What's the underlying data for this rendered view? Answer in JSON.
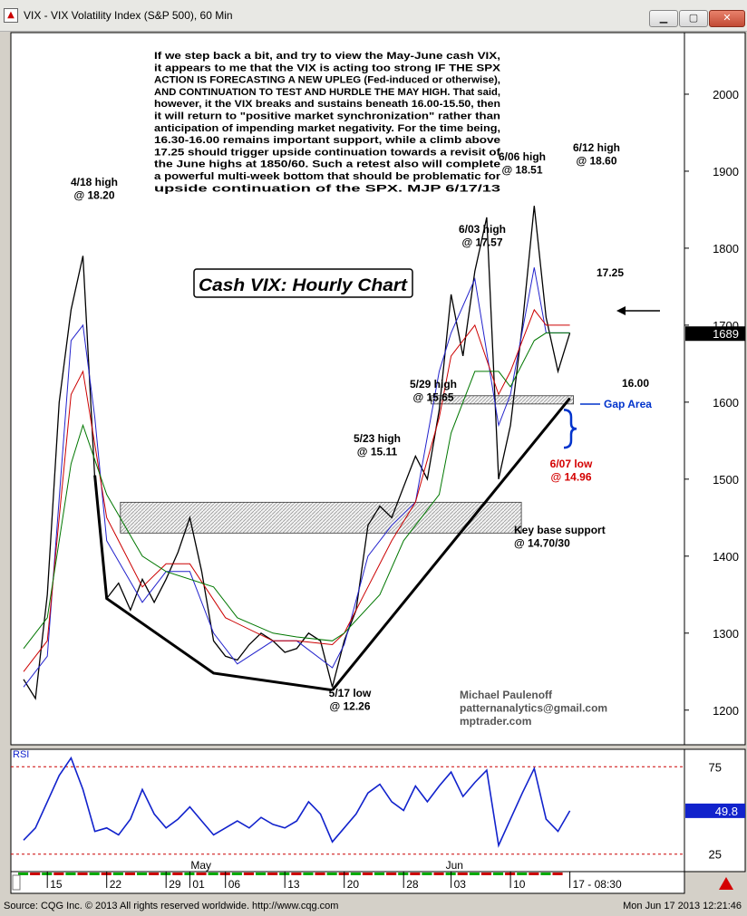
{
  "window": {
    "title": "VIX - VIX Volatility Index (S&P 500), 60 Min",
    "buttons": [
      "minimize",
      "maximize",
      "close"
    ]
  },
  "footer": {
    "source": "Source: CQG Inc. © 2013 All rights reserved worldwide. http://www.cqg.com",
    "timestamp": "Mon Jun 17 2013 12:21:46"
  },
  "chart_data": [
    {
      "type": "line",
      "title": "Cash VIX: Hourly Chart",
      "instrument": "VIX",
      "timeframe": "60 Min",
      "y_axis": {
        "position": "right",
        "ylim": [
          1155,
          2080
        ],
        "ticks": [
          1200,
          1300,
          1400,
          1500,
          1600,
          1700,
          1800,
          1900,
          2000
        ],
        "last_value": "1689"
      },
      "x_axis": {
        "date_ticks": [
          "15",
          "22",
          "29",
          "01",
          "06",
          "13",
          "20",
          "28",
          "03",
          "10",
          "17 - 08:30"
        ],
        "month_labels": [
          "May",
          "Jun"
        ]
      },
      "commentary": [
        "If we step back a bit, and try to view the May-June cash VIX,",
        "it appears to me that the VIX is acting too strong IF THE SPX",
        "ACTION IS FORECASTING A NEW UPLEG (Fed-induced or otherwise),",
        "AND CONTINUATION TO TEST AND HURDLE THE MAY HIGH. That said,",
        "however, it the VIX breaks and sustains beneath 16.00-15.50, then",
        "it will return to \"positive market synchronization\" rather than",
        "anticipation of impending market negativity.  For the time being,",
        "16.30-16.00 remains important support, while a climb above",
        "17.25 should trigger upside continuation towards a revisit of",
        "the June highs at 1850/60. Such a retest also will complete",
        "a powerful multi-week bottom that should be problematic for",
        "upside continuation of the SPX.  MJP  6/17/13"
      ],
      "annotations": [
        {
          "text": [
            "4/18 high",
            "@ 18.20"
          ],
          "color": "#000000"
        },
        {
          "text": [
            "5/17 low",
            "@ 12.26"
          ],
          "color": "#000000"
        },
        {
          "text": [
            "5/23 high",
            "@ 15.11"
          ],
          "color": "#000000"
        },
        {
          "text": [
            "5/29 high",
            "@ 15.65"
          ],
          "color": "#000000"
        },
        {
          "text": [
            "6/03 high",
            "@ 17.57"
          ],
          "color": "#000000"
        },
        {
          "text": [
            "6/06 high",
            "@ 18.51"
          ],
          "color": "#000000"
        },
        {
          "text": [
            "6/12 high",
            "@ 18.60"
          ],
          "color": "#000000"
        },
        {
          "text": [
            "17.25"
          ],
          "color": "#000000"
        },
        {
          "text": [
            "16.00"
          ],
          "color": "#000000"
        },
        {
          "text": [
            "Gap Area"
          ],
          "color": "#0033cc"
        },
        {
          "text": [
            "6/07 low",
            "@ 14.96"
          ],
          "color": "#d40000"
        },
        {
          "text": [
            "Key base support",
            "@ 14.70/30"
          ],
          "color": "#000000"
        }
      ],
      "signature": [
        "Michael Paulenoff",
        "patternanalytics@gmail.com",
        "mptrader.com"
      ],
      "zones": [
        {
          "type": "hatched-band",
          "from": 1430,
          "to": 1470
        },
        {
          "type": "support-band",
          "from": 1600,
          "to": 1606
        }
      ],
      "trendlines": [
        {
          "type": "base",
          "points": [
            [
              "4/19",
              1505
            ],
            [
              "4/22",
              1345
            ],
            [
              "5/03",
              1248
            ],
            [
              "5/17",
              1226
            ]
          ]
        },
        {
          "type": "rising-support",
          "points": [
            [
              "5/17",
              1226
            ],
            [
              "6/17",
              1605
            ]
          ]
        }
      ],
      "series": [
        {
          "name": "VIX",
          "color": "#000000",
          "x": [
            "4/11",
            "4/12",
            "4/15",
            "4/16",
            "4/17",
            "4/18",
            "4/19",
            "4/22",
            "4/23",
            "4/24",
            "4/25",
            "4/26",
            "4/29",
            "4/30",
            "5/01",
            "5/02",
            "5/03",
            "5/06",
            "5/07",
            "5/08",
            "5/09",
            "5/10",
            "5/13",
            "5/14",
            "5/15",
            "5/16",
            "5/17",
            "5/20",
            "5/21",
            "5/22",
            "5/23",
            "5/24",
            "5/28",
            "5/29",
            "5/30",
            "5/31",
            "6/03",
            "6/04",
            "6/05",
            "6/06",
            "6/07",
            "6/10",
            "6/11",
            "6/12",
            "6/13",
            "6/14",
            "6/17"
          ],
          "values": [
            1240,
            1215,
            1350,
            1600,
            1720,
            1790,
            1500,
            1345,
            1365,
            1330,
            1370,
            1340,
            1370,
            1405,
            1450,
            1380,
            1290,
            1270,
            1265,
            1285,
            1300,
            1290,
            1275,
            1280,
            1300,
            1290,
            1230,
            1290,
            1330,
            1440,
            1465,
            1450,
            1490,
            1530,
            1500,
            1590,
            1740,
            1660,
            1770,
            1840,
            1500,
            1570,
            1700,
            1855,
            1710,
            1640,
            1690
          ]
        },
        {
          "name": "blue MA",
          "color": "#2222cc",
          "x": [
            "4/11",
            "4/15",
            "4/17",
            "4/18",
            "4/19",
            "4/22",
            "4/25",
            "4/29",
            "5/01",
            "5/03",
            "5/07",
            "5/10",
            "5/14",
            "5/17",
            "5/20",
            "5/22",
            "5/24",
            "5/29",
            "5/31",
            "6/03",
            "6/05",
            "6/07",
            "6/10",
            "6/12",
            "6/13",
            "6/17"
          ],
          "values": [
            1230,
            1270,
            1680,
            1700,
            1580,
            1420,
            1340,
            1380,
            1380,
            1300,
            1260,
            1290,
            1290,
            1255,
            1285,
            1400,
            1440,
            1470,
            1640,
            1690,
            1760,
            1570,
            1610,
            1775,
            1690,
            1690
          ]
        },
        {
          "name": "red MA",
          "color": "#cc0000",
          "x": [
            "4/11",
            "4/15",
            "4/17",
            "4/18",
            "4/22",
            "4/25",
            "4/29",
            "5/01",
            "5/06",
            "5/10",
            "5/14",
            "5/17",
            "5/20",
            "5/22",
            "5/24",
            "5/29",
            "5/31",
            "6/03",
            "6/05",
            "6/07",
            "6/10",
            "6/12",
            "6/13",
            "6/17"
          ],
          "values": [
            1250,
            1290,
            1610,
            1640,
            1450,
            1360,
            1390,
            1390,
            1320,
            1290,
            1290,
            1285,
            1300,
            1360,
            1420,
            1470,
            1580,
            1660,
            1700,
            1610,
            1640,
            1720,
            1700,
            1700
          ]
        },
        {
          "name": "green MA",
          "color": "#007700",
          "x": [
            "4/11",
            "4/15",
            "4/17",
            "4/18",
            "4/22",
            "4/25",
            "4/29",
            "5/03",
            "5/07",
            "5/10",
            "5/14",
            "5/17",
            "5/20",
            "5/23",
            "5/28",
            "5/31",
            "6/03",
            "6/05",
            "6/07",
            "6/10",
            "6/12",
            "6/13",
            "6/17"
          ],
          "values": [
            1280,
            1320,
            1520,
            1570,
            1480,
            1400,
            1380,
            1360,
            1320,
            1300,
            1295,
            1290,
            1300,
            1350,
            1420,
            1480,
            1560,
            1640,
            1640,
            1620,
            1680,
            1690,
            1690
          ]
        }
      ]
    },
    {
      "type": "line",
      "title": "RSI",
      "ylim": [
        15,
        85
      ],
      "ticks": [
        25,
        75
      ],
      "last_value": "49.8",
      "series": [
        {
          "name": "RSI",
          "color": "#1122cc",
          "x": [
            "4/11",
            "4/12",
            "4/15",
            "4/16",
            "4/17",
            "4/18",
            "4/19",
            "4/22",
            "4/23",
            "4/24",
            "4/25",
            "4/26",
            "4/29",
            "4/30",
            "5/01",
            "5/02",
            "5/03",
            "5/06",
            "5/07",
            "5/08",
            "5/09",
            "5/10",
            "5/13",
            "5/14",
            "5/15",
            "5/16",
            "5/17",
            "5/20",
            "5/21",
            "5/22",
            "5/23",
            "5/24",
            "5/28",
            "5/29",
            "5/30",
            "5/31",
            "6/03",
            "6/04",
            "6/05",
            "6/06",
            "6/07",
            "6/10",
            "6/11",
            "6/12",
            "6/13",
            "6/14",
            "6/17"
          ],
          "values": [
            33,
            40,
            55,
            70,
            80,
            62,
            38,
            40,
            36,
            45,
            62,
            48,
            40,
            45,
            52,
            44,
            36,
            40,
            44,
            40,
            46,
            42,
            40,
            44,
            55,
            48,
            32,
            40,
            48,
            60,
            65,
            55,
            50,
            64,
            55,
            64,
            72,
            58,
            66,
            73,
            30,
            45,
            60,
            74,
            45,
            38,
            49.8
          ]
        }
      ]
    }
  ]
}
